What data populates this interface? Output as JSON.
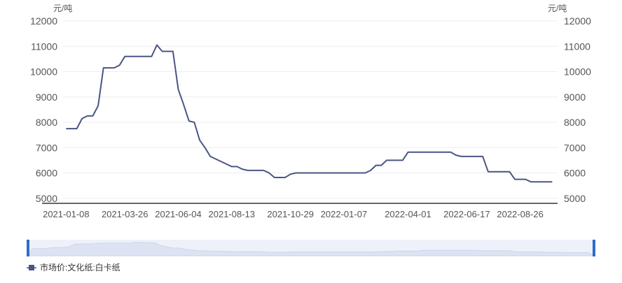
{
  "colors": {
    "line": "#4a5585",
    "axis_text": "#555555",
    "grid": "#eeeeee",
    "axis_line": "#333333",
    "slider_fill": "#eef1f9",
    "slider_handle": "#2e6cc9"
  },
  "chart_data": {
    "type": "line",
    "title": "",
    "y_unit_left": "元/吨",
    "y_unit_right": "元/吨",
    "ylim": [
      4800,
      12000
    ],
    "y_ticks": [
      5000,
      6000,
      7000,
      8000,
      9000,
      10000,
      11000,
      12000
    ],
    "x_tick_labels": [
      "2021-01-08",
      "2021-03-26",
      "2021-06-04",
      "2021-08-13",
      "2021-10-29",
      "2022-01-07",
      "2022-04-01",
      "2022-06-17",
      "2022-08-26"
    ],
    "x_ticks": [
      "2021-01-08",
      "2021-03-26",
      "2021-06-04",
      "2021-08-13",
      "2021-10-29",
      "2022-01-07",
      "2022-04-01",
      "2022-06-17",
      "2022-08-26"
    ],
    "xlim": [
      "2021-01-04",
      "2022-10-14"
    ],
    "grid": true,
    "legend_position": "bottom-left",
    "series": [
      {
        "name": "市场价:文化纸:白卡纸",
        "points": [
          [
            "2021-01-08",
            7750
          ],
          [
            "2021-01-22",
            7750
          ],
          [
            "2021-01-29",
            8150
          ],
          [
            "2021-02-05",
            8250
          ],
          [
            "2021-02-12",
            8250
          ],
          [
            "2021-02-19",
            8650
          ],
          [
            "2021-02-26",
            10150
          ],
          [
            "2021-03-12",
            10150
          ],
          [
            "2021-03-19",
            10250
          ],
          [
            "2021-03-26",
            10600
          ],
          [
            "2021-04-30",
            10600
          ],
          [
            "2021-05-07",
            11050
          ],
          [
            "2021-05-14",
            10800
          ],
          [
            "2021-05-28",
            10800
          ],
          [
            "2021-06-04",
            9300
          ],
          [
            "2021-06-11",
            8700
          ],
          [
            "2021-06-18",
            8050
          ],
          [
            "2021-06-25",
            8000
          ],
          [
            "2021-07-02",
            7300
          ],
          [
            "2021-07-09",
            7000
          ],
          [
            "2021-07-16",
            6650
          ],
          [
            "2021-08-13",
            6250
          ],
          [
            "2021-08-20",
            6250
          ],
          [
            "2021-08-27",
            6150
          ],
          [
            "2021-09-03",
            6100
          ],
          [
            "2021-09-24",
            6100
          ],
          [
            "2021-10-01",
            6000
          ],
          [
            "2021-10-08",
            5820
          ],
          [
            "2021-10-22",
            5820
          ],
          [
            "2021-10-29",
            5950
          ],
          [
            "2021-11-05",
            6000
          ],
          [
            "2022-01-07",
            6000
          ],
          [
            "2022-02-04",
            6000
          ],
          [
            "2022-02-11",
            6100
          ],
          [
            "2022-02-18",
            6300
          ],
          [
            "2022-02-25",
            6300
          ],
          [
            "2022-03-04",
            6500
          ],
          [
            "2022-03-25",
            6500
          ],
          [
            "2022-04-01",
            6820
          ],
          [
            "2022-05-27",
            6820
          ],
          [
            "2022-06-03",
            6700
          ],
          [
            "2022-06-10",
            6650
          ],
          [
            "2022-07-08",
            6650
          ],
          [
            "2022-07-15",
            6050
          ],
          [
            "2022-08-12",
            6050
          ],
          [
            "2022-08-19",
            5750
          ],
          [
            "2022-09-02",
            5750
          ],
          [
            "2022-09-09",
            5650
          ],
          [
            "2022-10-07",
            5650
          ]
        ]
      }
    ]
  }
}
